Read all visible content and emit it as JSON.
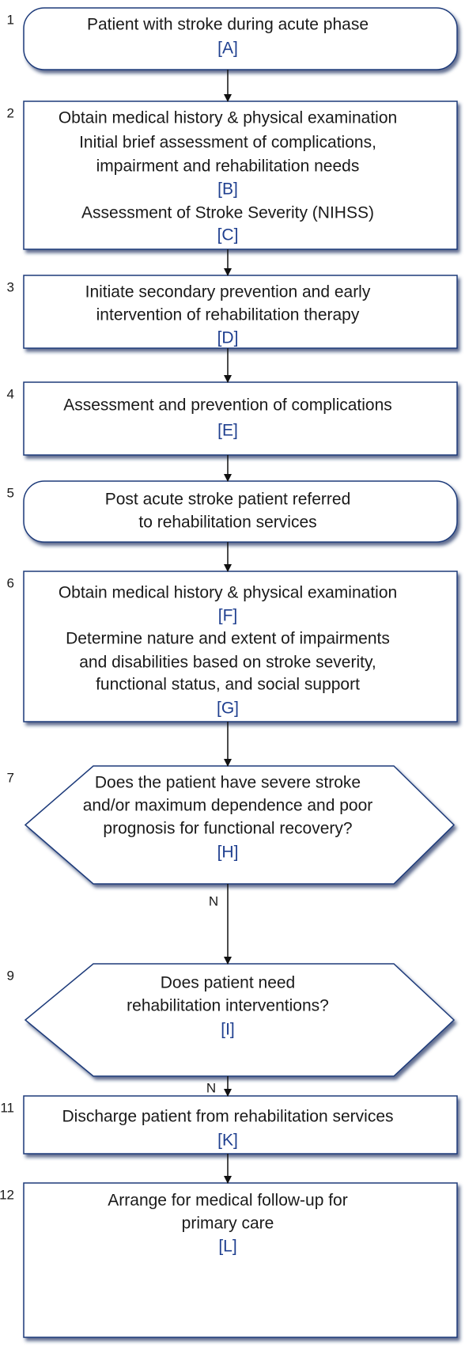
{
  "nodes": [
    {
      "number": "1",
      "lines": [
        "Patient with stroke during acute phase",
        "[A]"
      ]
    },
    {
      "number": "2",
      "lines": [
        "Obtain medical history & physical examination",
        "Initial brief assessment of complications,",
        "impairment and rehabilitation needs",
        "[B]",
        "Assessment of Stroke Severity (NIHSS)",
        "[C]"
      ]
    },
    {
      "number": "3",
      "lines": [
        "Initiate secondary prevention and early",
        "intervention of rehabilitation therapy",
        "[D]"
      ]
    },
    {
      "number": "4",
      "lines": [
        "Assessment and prevention of complications",
        "[E]"
      ]
    },
    {
      "number": "5",
      "lines": [
        "Post acute stroke patient referred",
        "to rehabilitation services"
      ]
    },
    {
      "number": "6",
      "lines": [
        "Obtain medical history & physical examination",
        "[F]",
        "Determine nature and extent of impairments",
        "and disabilities based on stroke severity,",
        "functional status, and social support",
        "[G]"
      ]
    },
    {
      "number": "7",
      "lines": [
        "Does the patient have severe stroke",
        "and/or maximum dependence and poor",
        "prognosis for functional recovery?",
        "[H]"
      ]
    },
    {
      "number": "9",
      "lines": [
        "Does patient need",
        "rehabilitation interventions?",
        "[I]"
      ]
    },
    {
      "number": "11",
      "lines": [
        "Discharge patient from rehabilitation services",
        "[K]"
      ]
    },
    {
      "number": "12",
      "lines": [
        "Arrange for medical follow-up for",
        "primary care",
        "[L]"
      ]
    }
  ],
  "edge_labels": [
    "N",
    "N"
  ]
}
